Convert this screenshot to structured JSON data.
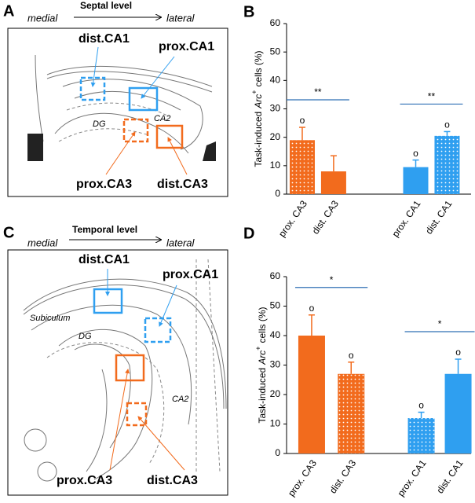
{
  "diagrams": [
    {
      "panel_label": "A",
      "left": "medial",
      "title": "Septal level",
      "right": "lateral",
      "regions": [
        "dist.CA1",
        "prox.CA1",
        "prox.CA3",
        "dist.CA3"
      ],
      "structures": [
        "DG",
        "CA2"
      ]
    },
    {
      "panel_label": "C",
      "left": "medial",
      "title": "Temporal level",
      "right": "lateral",
      "regions": [
        "dist.CA1",
        "prox.CA1",
        "prox.CA3",
        "dist.CA3"
      ],
      "structures": [
        "Subiculum",
        "DG",
        "CA2"
      ]
    }
  ],
  "chart_data": [
    {
      "type": "bar",
      "panel_label": "B",
      "ylabel": [
        "Task-induced",
        "Arc",
        "+",
        "cells (%)"
      ],
      "categories": [
        "prox. CA3",
        "dist. CA3",
        "prox. CA1",
        "dist. CA1"
      ],
      "values": [
        19,
        8,
        9.5,
        20.5
      ],
      "errors": [
        4.5,
        5.5,
        2.5,
        1.5
      ],
      "colors": [
        "#f26b1d",
        "#f26b1d",
        "#2f9ff0",
        "#2f9ff0"
      ],
      "patterns": [
        "dotted",
        "solid",
        "solid",
        "dotted"
      ],
      "markers": [
        "o",
        null,
        "o",
        "o"
      ],
      "annotations": [
        {
          "text": "**",
          "bars": [
            0,
            1
          ]
        },
        {
          "text": "**",
          "bars": [
            2,
            3
          ]
        }
      ],
      "ylim": [
        0,
        60
      ],
      "yticks": [
        0,
        10,
        20,
        30,
        40,
        50,
        60
      ]
    },
    {
      "type": "bar",
      "panel_label": "D",
      "ylabel": [
        "Task-induced",
        "Arc",
        "+",
        "cells (%)"
      ],
      "categories": [
        "prox. CA3",
        "dist. CA3",
        "prox. CA1",
        "dist. CA1"
      ],
      "values": [
        40,
        27,
        12,
        27
      ],
      "errors": [
        7,
        4,
        2,
        5
      ],
      "colors": [
        "#f26b1d",
        "#f26b1d",
        "#2f9ff0",
        "#2f9ff0"
      ],
      "patterns": [
        "solid",
        "dotted",
        "dotted",
        "solid"
      ],
      "markers": [
        "o",
        "o",
        "o",
        "o"
      ],
      "annotations": [
        {
          "text": "*",
          "bars": [
            0,
            1
          ]
        },
        {
          "text": "*",
          "bars": [
            2,
            3
          ]
        }
      ],
      "ylim": [
        0,
        60
      ],
      "yticks": [
        0,
        10,
        20,
        30,
        40,
        50,
        60
      ]
    }
  ]
}
